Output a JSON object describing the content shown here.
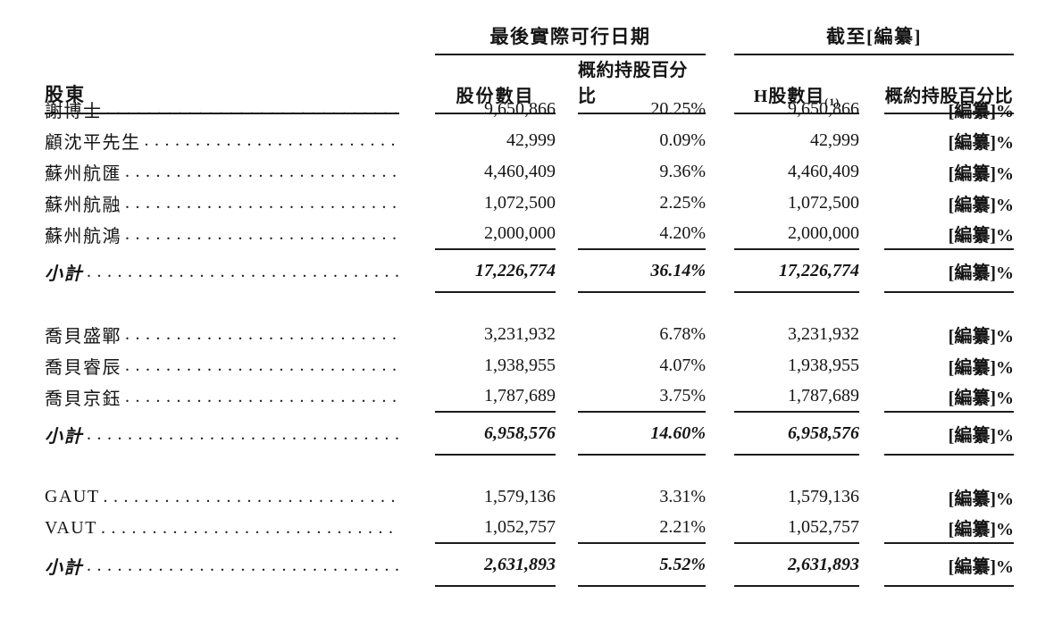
{
  "header": {
    "shareholder": "股東",
    "group1": {
      "title": "最後實際可行日期",
      "shares": "股份數目",
      "pct": "概約持股百分比"
    },
    "group2": {
      "title": "截至[編纂]",
      "h_shares": "H股數目",
      "note": "(1)",
      "pct": "概約持股百分比"
    }
  },
  "sections": [
    {
      "rows": [
        {
          "name": "謝博士",
          "shares": "9,650,866",
          "pct": "20.25%",
          "h_shares": "9,650,866",
          "h_pct": "[編纂]%"
        },
        {
          "name": "顧沈平先生",
          "shares": "42,999",
          "pct": "0.09%",
          "h_shares": "42,999",
          "h_pct": "[編纂]%"
        },
        {
          "name": "蘇州航匯",
          "shares": "4,460,409",
          "pct": "9.36%",
          "h_shares": "4,460,409",
          "h_pct": "[編纂]%"
        },
        {
          "name": "蘇州航融",
          "shares": "1,072,500",
          "pct": "2.25%",
          "h_shares": "1,072,500",
          "h_pct": "[編纂]%"
        },
        {
          "name": "蘇州航鴻",
          "shares": "2,000,000",
          "pct": "4.20%",
          "h_shares": "2,000,000",
          "h_pct": "[編纂]%"
        }
      ],
      "subtotal": {
        "name": "小計",
        "shares": "17,226,774",
        "pct": "36.14%",
        "h_shares": "17,226,774",
        "h_pct": "[編纂]%"
      }
    },
    {
      "rows": [
        {
          "name": "喬貝盛鄲",
          "shares": "3,231,932",
          "pct": "6.78%",
          "h_shares": "3,231,932",
          "h_pct": "[編纂]%"
        },
        {
          "name": "喬貝睿辰",
          "shares": "1,938,955",
          "pct": "4.07%",
          "h_shares": "1,938,955",
          "h_pct": "[編纂]%"
        },
        {
          "name": "喬貝京鈺",
          "shares": "1,787,689",
          "pct": "3.75%",
          "h_shares": "1,787,689",
          "h_pct": "[編纂]%"
        }
      ],
      "subtotal": {
        "name": "小計",
        "shares": "6,958,576",
        "pct": "14.60%",
        "h_shares": "6,958,576",
        "h_pct": "[編纂]%"
      }
    },
    {
      "rows": [
        {
          "name": "GAUT",
          "shares": "1,579,136",
          "pct": "3.31%",
          "h_shares": "1,579,136",
          "h_pct": "[編纂]%"
        },
        {
          "name": "VAUT",
          "shares": "1,052,757",
          "pct": "2.21%",
          "h_shares": "1,052,757",
          "h_pct": "[編纂]%"
        }
      ],
      "subtotal": {
        "name": "小計",
        "shares": "2,631,893",
        "pct": "5.52%",
        "h_shares": "2,631,893",
        "h_pct": "[編纂]%"
      }
    }
  ]
}
